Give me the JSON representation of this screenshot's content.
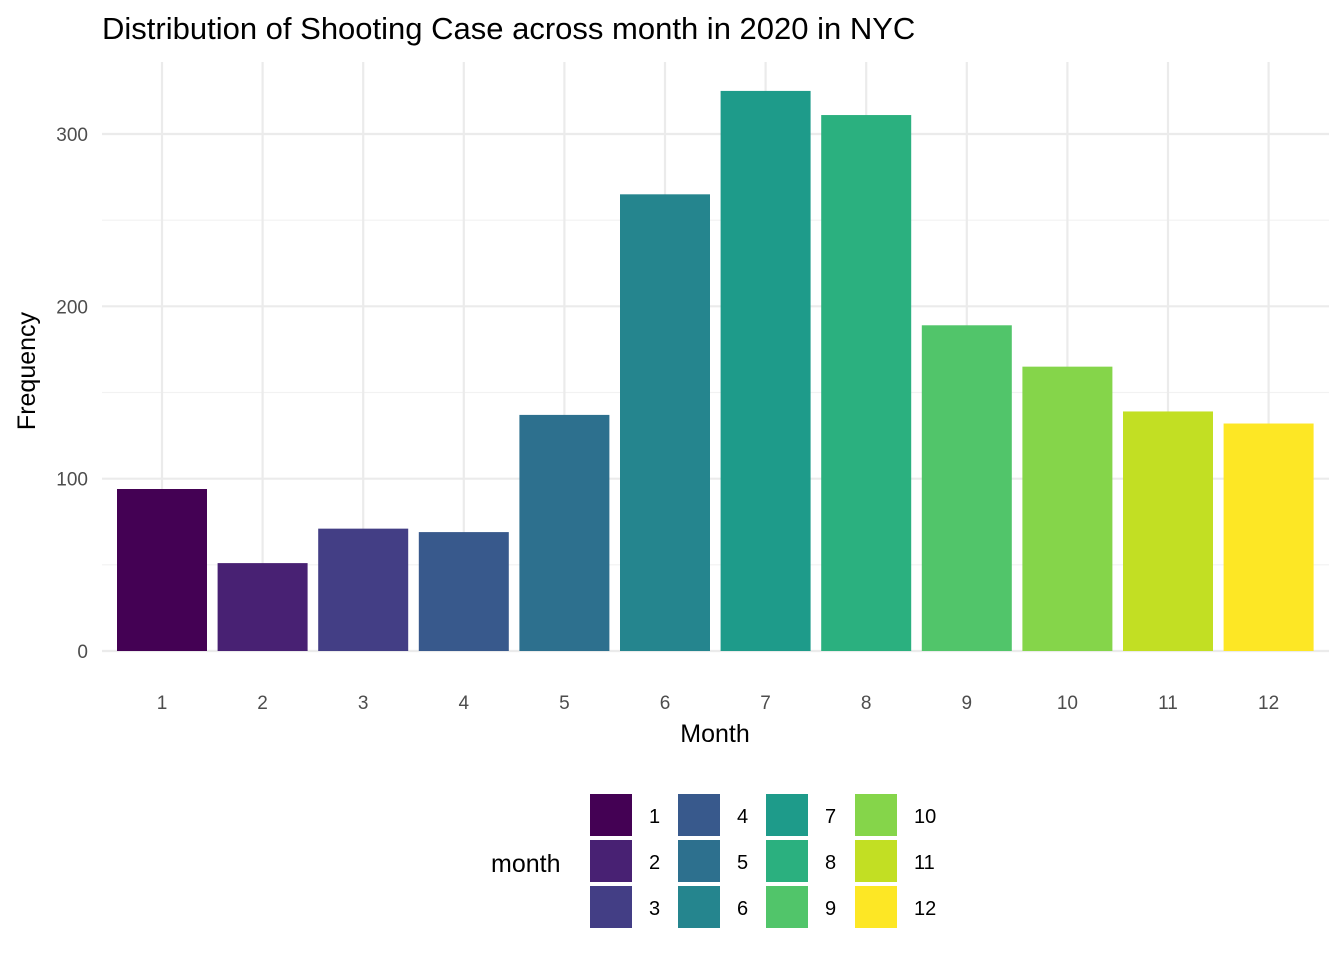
{
  "chart_data": {
    "type": "bar",
    "title": "Distribution of Shooting Case across month in 2020 in NYC",
    "xlabel": "Month",
    "ylabel": "Frequency",
    "categories": [
      "1",
      "2",
      "3",
      "4",
      "5",
      "6",
      "7",
      "8",
      "9",
      "10",
      "11",
      "12"
    ],
    "values": [
      94,
      51,
      71,
      69,
      137,
      265,
      325,
      311,
      189,
      165,
      139,
      132
    ],
    "colors": [
      "#440154",
      "#482173",
      "#433E85",
      "#38598C",
      "#2D708E",
      "#25858E",
      "#1E9B8A",
      "#2BB07F",
      "#51C56A",
      "#85D54A",
      "#C2DF23",
      "#FDE725"
    ],
    "ylim": [
      0,
      340
    ],
    "yticks": [
      0,
      100,
      200,
      300
    ],
    "grid": true,
    "legend": {
      "title": "month",
      "position": "bottom",
      "entries": [
        "1",
        "2",
        "3",
        "4",
        "5",
        "6",
        "7",
        "8",
        "9",
        "10",
        "11",
        "12"
      ]
    }
  }
}
